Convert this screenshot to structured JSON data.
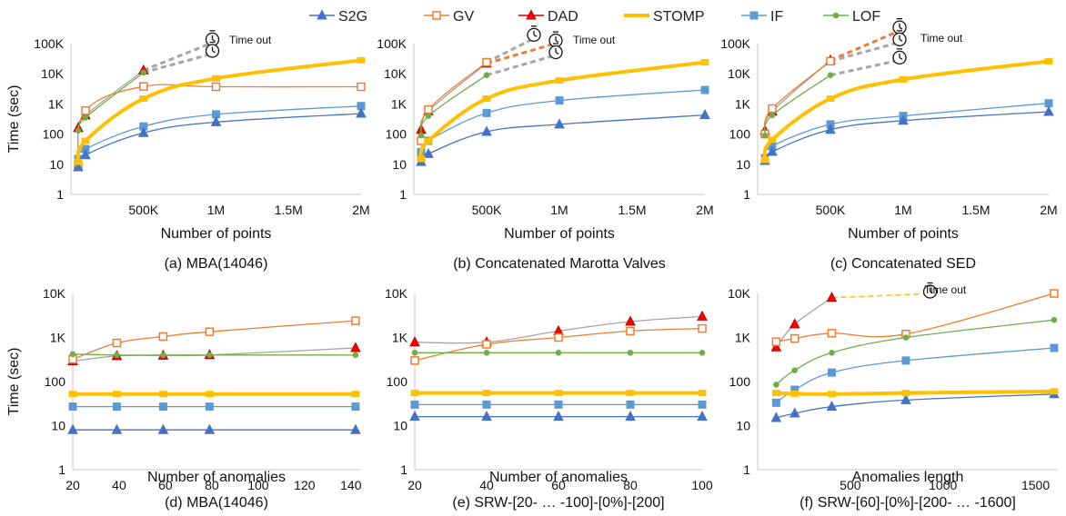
{
  "legend": {
    "items": [
      {
        "name": "S2G",
        "color": "#4472c4",
        "marker": "triangle",
        "hollow": false
      },
      {
        "name": "GV",
        "color": "#ed7d31",
        "marker": "square",
        "hollow": true
      },
      {
        "name": "DAD",
        "color": "#c00000",
        "marker": "triangle",
        "hollow": false,
        "fill": "#ff0000"
      },
      {
        "name": "STOMP",
        "color": "#ffc000",
        "marker": "none",
        "hollow": false,
        "thick": true
      },
      {
        "name": "IF",
        "color": "#5b9bd5",
        "marker": "square",
        "hollow": false
      },
      {
        "name": "LOF",
        "color": "#70ad47",
        "marker": "circle",
        "hollow": false
      }
    ]
  },
  "timeout_label": "Time out",
  "chart_data": [
    {
      "type": "line",
      "ylog": true,
      "caption": "(a)  MBA(14046)",
      "xlabel": "Number of points",
      "ylabel": "Time (sec)",
      "xlim": [
        0,
        2000000
      ],
      "ylim": [
        1,
        100000
      ],
      "xticks": [
        {
          "v": 500000,
          "l": "500K"
        },
        {
          "v": 1000000,
          "l": "1M"
        },
        {
          "v": 1500000,
          "l": "1.5M"
        },
        {
          "v": 2000000,
          "l": "2M"
        }
      ],
      "yticks": [
        {
          "v": 1,
          "l": "1"
        },
        {
          "v": 10,
          "l": "10"
        },
        {
          "v": 100,
          "l": "100"
        },
        {
          "v": 1000,
          "l": "1K"
        },
        {
          "v": 10000,
          "l": "10K"
        },
        {
          "v": 100000,
          "l": "100K"
        }
      ],
      "series": [
        {
          "name": "S2G",
          "x": [
            50000,
            100000,
            500000,
            1000000,
            2000000
          ],
          "y": [
            8,
            20,
            110,
            250,
            480
          ]
        },
        {
          "name": "IF",
          "x": [
            50000,
            100000,
            500000,
            1000000,
            2000000
          ],
          "y": [
            15,
            32,
            180,
            450,
            850
          ]
        },
        {
          "name": "STOMP",
          "x": [
            50000,
            100000,
            500000,
            1000000,
            2000000
          ],
          "y": [
            12,
            60,
            1500,
            7000,
            28000
          ]
        },
        {
          "name": "GV",
          "x": [
            50000,
            100000,
            500000,
            1000000,
            2000000
          ],
          "y": [
            10,
            600,
            3800,
            3700,
            3700
          ]
        },
        {
          "name": "DAD",
          "x": [
            50000,
            100000,
            500000
          ],
          "y": [
            160,
            420,
            13000
          ]
        },
        {
          "name": "LOF",
          "x": [
            50000,
            100000,
            500000
          ],
          "y": [
            130,
            350,
            11000
          ]
        }
      ],
      "timeouts": [
        {
          "from": [
            500000,
            13000
          ],
          "to": [
            1000000,
            120000
          ],
          "color": "#a6a6a6"
        },
        {
          "from": [
            500000,
            11000
          ],
          "to": [
            1000000,
            50000
          ],
          "color": "#a6a6a6"
        }
      ]
    },
    {
      "type": "line",
      "ylog": true,
      "caption": "(b) Concatenated Marotta Valves",
      "xlabel": "Number of points",
      "ylabel": "",
      "xlim": [
        0,
        2000000
      ],
      "ylim": [
        1,
        100000
      ],
      "xticks": [
        {
          "v": 500000,
          "l": "500K"
        },
        {
          "v": 1000000,
          "l": "1M"
        },
        {
          "v": 1500000,
          "l": "1.5M"
        },
        {
          "v": 2000000,
          "l": "2M"
        }
      ],
      "yticks": [
        {
          "v": 1,
          "l": "1"
        },
        {
          "v": 10,
          "l": "10"
        },
        {
          "v": 100,
          "l": "100"
        },
        {
          "v": 1000,
          "l": "1K"
        },
        {
          "v": 10000,
          "l": "10K"
        },
        {
          "v": 100000,
          "l": "100K"
        }
      ],
      "series": [
        {
          "name": "S2G",
          "x": [
            50000,
            100000,
            500000,
            1000000,
            2000000
          ],
          "y": [
            12,
            22,
            120,
            210,
            430
          ]
        },
        {
          "name": "IF",
          "x": [
            50000,
            100000,
            500000,
            1000000,
            2000000
          ],
          "y": [
            25,
            60,
            500,
            1300,
            2900
          ]
        },
        {
          "name": "STOMP",
          "x": [
            50000,
            100000,
            500000,
            1000000,
            2000000
          ],
          "y": [
            15,
            60,
            1500,
            6000,
            24000
          ]
        },
        {
          "name": "GV",
          "x": [
            50000,
            100000,
            500000
          ],
          "y": [
            60,
            650,
            24000
          ]
        },
        {
          "name": "DAD",
          "x": [
            50000,
            100000,
            500000
          ],
          "y": [
            140,
            580,
            22000
          ]
        },
        {
          "name": "LOF",
          "x": [
            50000,
            100000,
            500000
          ],
          "y": [
            90,
            400,
            9000
          ]
        }
      ],
      "timeouts": [
        {
          "from": [
            500000,
            24000
          ],
          "to": [
            850000,
            170000
          ],
          "color": "#a6a6a6"
        },
        {
          "from": [
            500000,
            22000
          ],
          "to": [
            1000000,
            110000
          ],
          "color": "#ed7d31"
        },
        {
          "from": [
            500000,
            9000
          ],
          "to": [
            1000000,
            45000
          ],
          "color": "#a6a6a6"
        }
      ]
    },
    {
      "type": "line",
      "ylog": true,
      "caption": "(c) Concatenated SED",
      "xlabel": "Number of points",
      "ylabel": "",
      "xlim": [
        0,
        2000000
      ],
      "ylim": [
        1,
        100000
      ],
      "xticks": [
        {
          "v": 500000,
          "l": "500K"
        },
        {
          "v": 1000000,
          "l": "1M"
        },
        {
          "v": 1500000,
          "l": "1.5M"
        },
        {
          "v": 2000000,
          "l": "2M"
        }
      ],
      "yticks": [
        {
          "v": 1,
          "l": "1"
        },
        {
          "v": 10,
          "l": "10"
        },
        {
          "v": 100,
          "l": "100"
        },
        {
          "v": 1000,
          "l": "1K"
        },
        {
          "v": 10000,
          "l": "10K"
        },
        {
          "v": 100000,
          "l": "100K"
        }
      ],
      "series": [
        {
          "name": "S2G",
          "x": [
            50000,
            100000,
            500000,
            1000000,
            2000000
          ],
          "y": [
            13,
            26,
            140,
            280,
            550
          ]
        },
        {
          "name": "IF",
          "x": [
            50000,
            100000,
            500000,
            1000000,
            2000000
          ],
          "y": [
            16,
            40,
            210,
            400,
            1050
          ]
        },
        {
          "name": "STOMP",
          "x": [
            50000,
            100000,
            500000,
            1000000,
            2000000
          ],
          "y": [
            14,
            65,
            1500,
            6500,
            26000
          ]
        },
        {
          "name": "GV",
          "x": [
            50000,
            100000,
            500000
          ],
          "y": [
            100,
            700,
            26000
          ]
        },
        {
          "name": "DAD",
          "x": [
            50000,
            100000,
            500000
          ],
          "y": [
            130,
            560,
            28000
          ]
        },
        {
          "name": "LOF",
          "x": [
            50000,
            100000,
            500000
          ],
          "y": [
            90,
            420,
            9000
          ]
        }
      ],
      "timeouts": [
        {
          "from": [
            500000,
            28000
          ],
          "to": [
            1000000,
            300000
          ],
          "color": "#ed7d31"
        },
        {
          "from": [
            500000,
            26000
          ],
          "to": [
            1000000,
            120000
          ],
          "color": "#a6a6a6"
        },
        {
          "from": [
            500000,
            9000
          ],
          "to": [
            1000000,
            30000
          ],
          "color": "#a6a6a6"
        }
      ]
    },
    {
      "type": "line",
      "ylog": true,
      "caption": "(d) MBA(14046)",
      "xlabel": "Number of anomalies",
      "ylabel": "Time (sec)",
      "xlim": [
        20,
        144
      ],
      "ylim": [
        1,
        10000
      ],
      "xticks": [
        {
          "v": 20,
          "l": "20"
        },
        {
          "v": 40,
          "l": "40"
        },
        {
          "v": 60,
          "l": "60"
        },
        {
          "v": 80,
          "l": "80"
        },
        {
          "v": 100,
          "l": "100"
        },
        {
          "v": 120,
          "l": "120"
        },
        {
          "v": 140,
          "l": "140"
        }
      ],
      "yticks": [
        {
          "v": 1,
          "l": "1"
        },
        {
          "v": 10,
          "l": "10"
        },
        {
          "v": 100,
          "l": "100"
        },
        {
          "v": 1000,
          "l": "1K"
        },
        {
          "v": 10000,
          "l": "10K"
        }
      ],
      "series": [
        {
          "name": "S2G",
          "x": [
            20,
            39,
            59,
            79,
            142
          ],
          "y": [
            8,
            8,
            8,
            8,
            8
          ]
        },
        {
          "name": "IF",
          "x": [
            20,
            39,
            59,
            79,
            142
          ],
          "y": [
            27,
            27,
            27,
            27,
            27
          ]
        },
        {
          "name": "STOMP",
          "x": [
            20,
            39,
            59,
            79,
            142
          ],
          "y": [
            52,
            52,
            52,
            52,
            52
          ]
        },
        {
          "name": "GV",
          "x": [
            20,
            39,
            59,
            79,
            142
          ],
          "y": [
            320,
            750,
            1050,
            1350,
            2400
          ]
        },
        {
          "name": "DAD",
          "x": [
            20,
            39,
            59,
            79,
            142
          ],
          "y": [
            290,
            380,
            390,
            400,
            580
          ]
        },
        {
          "name": "LOF",
          "x": [
            20,
            39,
            59,
            79,
            142
          ],
          "y": [
            420,
            400,
            400,
            400,
            400
          ]
        }
      ],
      "timeouts": []
    },
    {
      "type": "line",
      "ylog": true,
      "caption": "(e) SRW-[20- … -100]-[0%]-[200]",
      "xlabel": "Number of anomalies",
      "ylabel": "",
      "xlim": [
        20,
        100
      ],
      "ylim": [
        1,
        10000
      ],
      "xticks": [
        {
          "v": 20,
          "l": "20"
        },
        {
          "v": 40,
          "l": "40"
        },
        {
          "v": 60,
          "l": "60"
        },
        {
          "v": 80,
          "l": "80"
        },
        {
          "v": 100,
          "l": "100"
        }
      ],
      "yticks": [
        {
          "v": 1,
          "l": "1"
        },
        {
          "v": 10,
          "l": "10"
        },
        {
          "v": 100,
          "l": "100"
        },
        {
          "v": 1000,
          "l": "1K"
        },
        {
          "v": 10000,
          "l": "10K"
        }
      ],
      "series": [
        {
          "name": "S2G",
          "x": [
            20,
            40,
            60,
            80,
            100
          ],
          "y": [
            16,
            16,
            16,
            16,
            16
          ]
        },
        {
          "name": "IF",
          "x": [
            20,
            40,
            60,
            80,
            100
          ],
          "y": [
            30,
            30,
            30,
            30,
            30
          ]
        },
        {
          "name": "STOMP",
          "x": [
            20,
            40,
            60,
            80,
            100
          ],
          "y": [
            55,
            55,
            55,
            55,
            55
          ]
        },
        {
          "name": "GV",
          "x": [
            20,
            40,
            60,
            80,
            100
          ],
          "y": [
            300,
            700,
            1000,
            1400,
            1600
          ]
        },
        {
          "name": "DAD",
          "x": [
            20,
            40,
            60,
            80,
            100
          ],
          "y": [
            780,
            780,
            1400,
            2300,
            3000
          ]
        },
        {
          "name": "LOF",
          "x": [
            20,
            40,
            60,
            80,
            100
          ],
          "y": [
            450,
            450,
            450,
            450,
            450
          ]
        }
      ],
      "timeouts": []
    },
    {
      "type": "line",
      "ylog": true,
      "caption": "(f) SRW-[60]-[0%]-[200- … -1600]",
      "xlabel": "Anomalies length",
      "ylabel": "",
      "xlim": [
        0,
        1620
      ],
      "ylim": [
        1,
        10000
      ],
      "xticks": [
        {
          "v": 500,
          "l": "500"
        },
        {
          "v": 1000,
          "l": "1000"
        },
        {
          "v": 1500,
          "l": "1500"
        }
      ],
      "yticks": [
        {
          "v": 1,
          "l": "1"
        },
        {
          "v": 10,
          "l": "10"
        },
        {
          "v": 100,
          "l": "100"
        },
        {
          "v": 1000,
          "l": "1K"
        },
        {
          "v": 10000,
          "l": "10K"
        }
      ],
      "series": [
        {
          "name": "S2G",
          "x": [
            100,
            200,
            400,
            800,
            1600
          ],
          "y": [
            15,
            19,
            27,
            38,
            52
          ]
        },
        {
          "name": "IF",
          "x": [
            100,
            200,
            400,
            800,
            1600
          ],
          "y": [
            33,
            65,
            160,
            300,
            580
          ]
        },
        {
          "name": "STOMP",
          "x": [
            100,
            200,
            400,
            800,
            1600
          ],
          "y": [
            55,
            53,
            52,
            55,
            60
          ]
        },
        {
          "name": "GV",
          "x": [
            100,
            200,
            400,
            800,
            1600
          ],
          "y": [
            800,
            950,
            1250,
            1200,
            10000
          ]
        },
        {
          "name": "DAD",
          "x": [
            100,
            200,
            400
          ],
          "y": [
            600,
            2000,
            8000
          ]
        },
        {
          "name": "LOF",
          "x": [
            100,
            200,
            400,
            800,
            1600
          ],
          "y": [
            85,
            180,
            450,
            1000,
            2500
          ]
        }
      ],
      "timeouts": [
        {
          "from": [
            400,
            8000
          ],
          "to": [
            950,
            10000
          ],
          "color": "#ffc000"
        }
      ]
    }
  ]
}
